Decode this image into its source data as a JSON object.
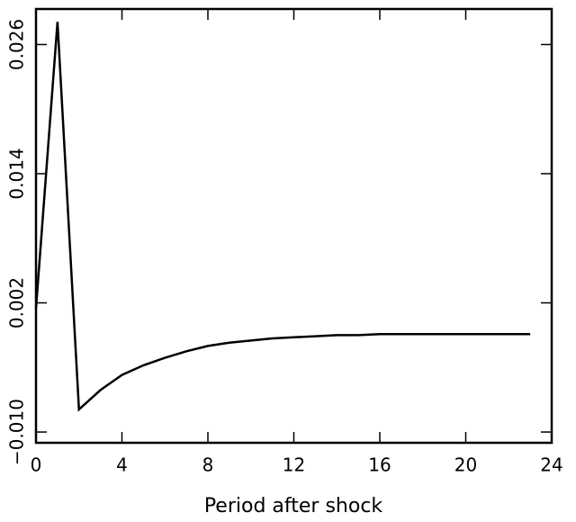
{
  "chart_data": {
    "type": "line",
    "xlabel": "Period after shock",
    "x": [
      0,
      1,
      2,
      3,
      4,
      5,
      6,
      7,
      8,
      9,
      10,
      11,
      12,
      13,
      14,
      15,
      16,
      17,
      18,
      19,
      20,
      21,
      22,
      23
    ],
    "series": [
      {
        "color": "#000000",
        "values": [
          0.0015,
          0.0281,
          -0.0079,
          -0.0061,
          -0.0047,
          -0.0038,
          -0.0031,
          -0.0025,
          -0.002,
          -0.0017,
          -0.0015,
          -0.0013,
          -0.0012,
          -0.0011,
          -0.001,
          -0.001,
          -0.0009,
          -0.0009,
          -0.0009,
          -0.0009,
          -0.0009,
          -0.0009,
          -0.0009,
          -0.0009
        ]
      }
    ],
    "xlim": [
      0,
      24
    ],
    "xticks": [
      0,
      4,
      8,
      12,
      16,
      20,
      24
    ],
    "ylim": [
      -0.011,
      0.0293
    ],
    "yticks": [
      {
        "value": -0.01,
        "label": "−0.010"
      },
      {
        "value": 0.002,
        "label": "0.002"
      },
      {
        "value": 0.014,
        "label": "0.014"
      },
      {
        "value": 0.026,
        "label": "0.026"
      }
    ]
  }
}
